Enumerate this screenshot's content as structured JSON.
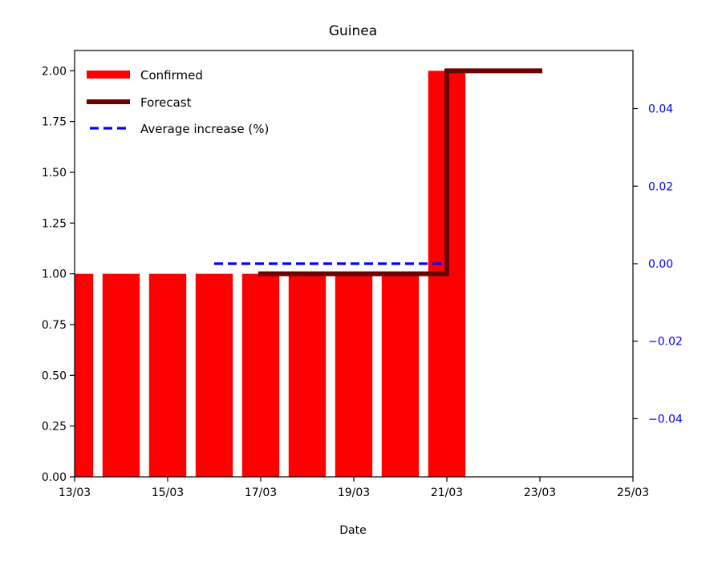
{
  "chart_data": {
    "type": "bar",
    "title": "Guinea",
    "xlabel": "Date",
    "ylabel": "",
    "xlim": [
      "2020-03-13",
      "2020-03-25"
    ],
    "ylim": [
      0,
      2.1
    ],
    "y2lim": [
      -0.055,
      0.055
    ],
    "x_ticks": [
      "13/03",
      "15/03",
      "17/03",
      "19/03",
      "21/03",
      "23/03",
      "25/03"
    ],
    "y_ticks": [
      "0.00",
      "0.25",
      "0.50",
      "0.75",
      "1.00",
      "1.25",
      "1.50",
      "1.75",
      "2.00"
    ],
    "y2_ticks": [
      "−0.04",
      "−0.02",
      "0.00",
      "0.02",
      "0.04"
    ],
    "legend_position": "top-left",
    "grid": false,
    "series": [
      {
        "name": "Confirmed",
        "kind": "bar",
        "color": "#ff0000",
        "x": [
          "2020-03-13",
          "2020-03-14",
          "2020-03-15",
          "2020-03-16",
          "2020-03-17",
          "2020-03-18",
          "2020-03-19",
          "2020-03-20",
          "2020-03-21"
        ],
        "values": [
          1,
          1,
          1,
          1,
          1,
          1,
          1,
          1,
          2
        ]
      },
      {
        "name": "Forecast",
        "kind": "step",
        "color": "#6b0000",
        "x": [
          "2020-03-17",
          "2020-03-21",
          "2020-03-21",
          "2020-03-23"
        ],
        "values": [
          1,
          1,
          2,
          2
        ]
      },
      {
        "name": "Average increase (%)",
        "kind": "dashed",
        "axis": "right",
        "color": "#0000ff",
        "x": [
          "2020-03-16",
          "2020-03-21"
        ],
        "values": [
          0,
          0
        ]
      }
    ]
  }
}
